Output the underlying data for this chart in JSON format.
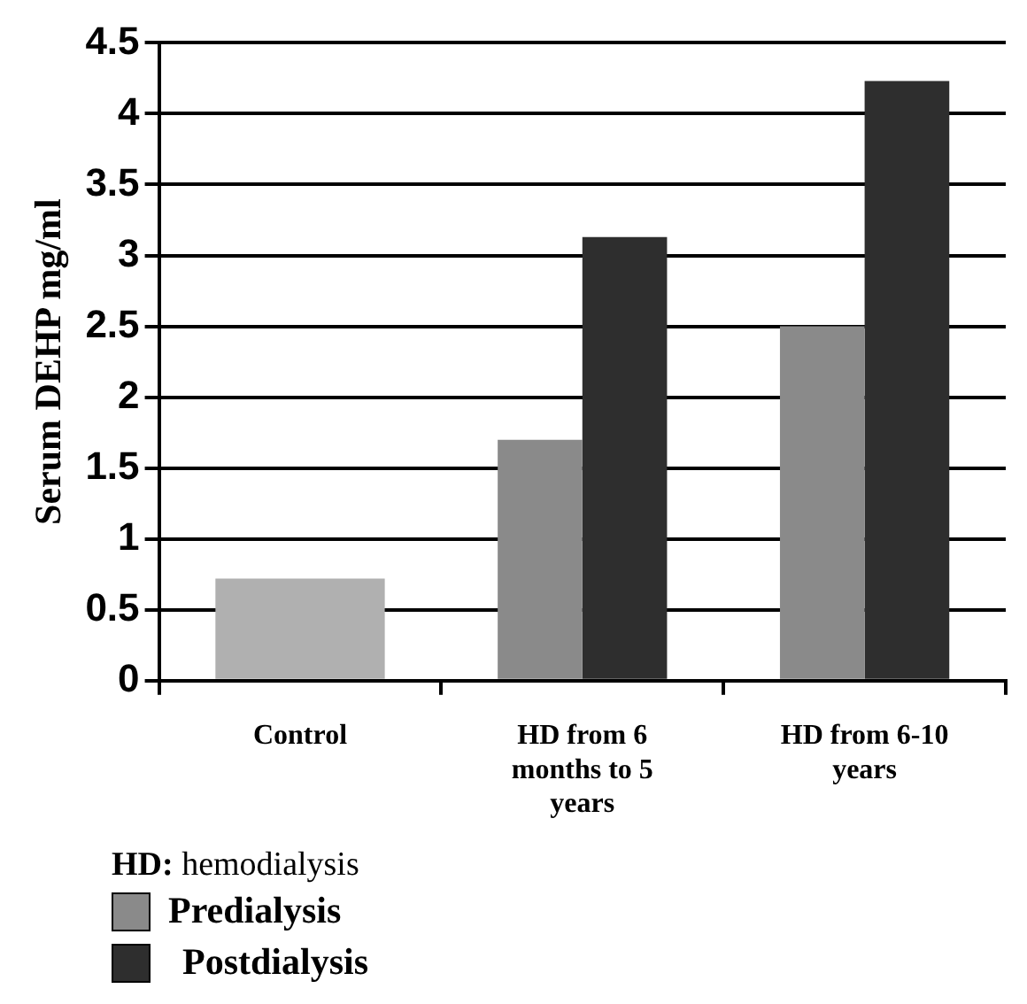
{
  "chart_data": {
    "type": "bar",
    "ylabel": "Serum DEHP mg/ml",
    "categories": [
      "Control",
      "HD from 6 months to 5 years",
      "HD from 6-10 years"
    ],
    "series": [
      {
        "color": "#b0b0b0",
        "values": [
          0.72,
          null,
          null
        ]
      },
      {
        "name": "Predialysis",
        "color": "#8a8a8a",
        "values": [
          null,
          1.7,
          2.5
        ]
      },
      {
        "name": "Postdialysis",
        "color": "#2e2e2e",
        "values": [
          null,
          3.13,
          4.23
        ]
      }
    ],
    "ylim": [
      0,
      4.5
    ],
    "yticks": [
      0,
      0.5,
      1,
      1.5,
      2,
      2.5,
      3,
      3.5,
      4,
      4.5
    ],
    "grid": "y",
    "legend": "bottom left",
    "annotations": [
      "HD: hemodialysis"
    ]
  }
}
